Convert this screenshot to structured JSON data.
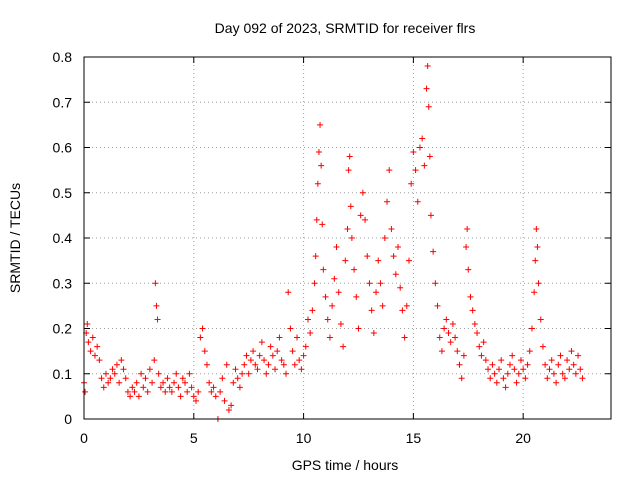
{
  "chart_data": {
    "type": "scatter",
    "title": "Day 092 of 2023, SRMTID for receiver flrs",
    "xlabel": "GPS time / hours",
    "ylabel": "SRMTID / TECUs",
    "xlim": [
      0,
      24
    ],
    "ylim": [
      0,
      0.8
    ],
    "xticks": [
      0,
      5,
      10,
      15,
      20
    ],
    "yticks": [
      0,
      0.1,
      0.2,
      0.3,
      0.4,
      0.5,
      0.6,
      0.7,
      0.8
    ],
    "xtick_labels": [
      "0",
      "5",
      "10",
      "15",
      "20"
    ],
    "ytick_labels": [
      "0",
      "0.1",
      "0.2",
      "0.3",
      "0.4",
      "0.5",
      "0.6",
      "0.7",
      "0.8"
    ],
    "grid": true,
    "marker": "+",
    "color": "#ff0000",
    "series": [
      {
        "name": "flrs",
        "points": [
          [
            0.0,
            0.08
          ],
          [
            0.05,
            0.06
          ],
          [
            0.1,
            0.19
          ],
          [
            0.15,
            0.21
          ],
          [
            0.2,
            0.17
          ],
          [
            0.3,
            0.15
          ],
          [
            0.4,
            0.18
          ],
          [
            0.5,
            0.14
          ],
          [
            0.6,
            0.16
          ],
          [
            0.7,
            0.13
          ],
          [
            0.8,
            0.09
          ],
          [
            0.9,
            0.07
          ],
          [
            1.0,
            0.1
          ],
          [
            1.1,
            0.08
          ],
          [
            1.2,
            0.09
          ],
          [
            1.3,
            0.11
          ],
          [
            1.4,
            0.1
          ],
          [
            1.5,
            0.12
          ],
          [
            1.6,
            0.08
          ],
          [
            1.7,
            0.13
          ],
          [
            1.8,
            0.11
          ],
          [
            1.9,
            0.09
          ],
          [
            2.0,
            0.06
          ],
          [
            2.1,
            0.05
          ],
          [
            2.2,
            0.07
          ],
          [
            2.3,
            0.06
          ],
          [
            2.4,
            0.08
          ],
          [
            2.5,
            0.05
          ],
          [
            2.6,
            0.1
          ],
          [
            2.7,
            0.07
          ],
          [
            2.8,
            0.09
          ],
          [
            2.9,
            0.06
          ],
          [
            3.0,
            0.11
          ],
          [
            3.1,
            0.08
          ],
          [
            3.2,
            0.13
          ],
          [
            3.25,
            0.3
          ],
          [
            3.3,
            0.25
          ],
          [
            3.35,
            0.22
          ],
          [
            3.4,
            0.1
          ],
          [
            3.5,
            0.07
          ],
          [
            3.6,
            0.08
          ],
          [
            3.7,
            0.06
          ],
          [
            3.8,
            0.09
          ],
          [
            3.9,
            0.07
          ],
          [
            4.0,
            0.06
          ],
          [
            4.1,
            0.08
          ],
          [
            4.2,
            0.1
          ],
          [
            4.3,
            0.07
          ],
          [
            4.4,
            0.05
          ],
          [
            4.5,
            0.09
          ],
          [
            4.6,
            0.08
          ],
          [
            4.7,
            0.06
          ],
          [
            4.8,
            0.1
          ],
          [
            4.9,
            0.07
          ],
          [
            5.0,
            0.05
          ],
          [
            5.1,
            0.04
          ],
          [
            5.2,
            0.06
          ],
          [
            5.3,
            0.18
          ],
          [
            5.4,
            0.2
          ],
          [
            5.5,
            0.15
          ],
          [
            5.6,
            0.12
          ],
          [
            5.7,
            0.08
          ],
          [
            5.8,
            0.06
          ],
          [
            5.9,
            0.07
          ],
          [
            6.0,
            0.05
          ],
          [
            6.1,
            0.0
          ],
          [
            6.2,
            0.06
          ],
          [
            6.3,
            0.09
          ],
          [
            6.4,
            0.04
          ],
          [
            6.5,
            0.12
          ],
          [
            6.6,
            0.02
          ],
          [
            6.7,
            0.03
          ],
          [
            6.8,
            0.08
          ],
          [
            6.9,
            0.11
          ],
          [
            7.0,
            0.09
          ],
          [
            7.1,
            0.07
          ],
          [
            7.2,
            0.1
          ],
          [
            7.3,
            0.12
          ],
          [
            7.4,
            0.14
          ],
          [
            7.5,
            0.1
          ],
          [
            7.6,
            0.13
          ],
          [
            7.7,
            0.15
          ],
          [
            7.8,
            0.12
          ],
          [
            7.9,
            0.11
          ],
          [
            8.0,
            0.14
          ],
          [
            8.1,
            0.17
          ],
          [
            8.2,
            0.13
          ],
          [
            8.3,
            0.1
          ],
          [
            8.4,
            0.12
          ],
          [
            8.5,
            0.16
          ],
          [
            8.6,
            0.14
          ],
          [
            8.7,
            0.11
          ],
          [
            8.8,
            0.15
          ],
          [
            8.9,
            0.18
          ],
          [
            9.0,
            0.13
          ],
          [
            9.1,
            0.12
          ],
          [
            9.2,
            0.1
          ],
          [
            9.3,
            0.28
          ],
          [
            9.4,
            0.2
          ],
          [
            9.5,
            0.15
          ],
          [
            9.6,
            0.12
          ],
          [
            9.7,
            0.18
          ],
          [
            9.8,
            0.13
          ],
          [
            9.9,
            0.11
          ],
          [
            10.0,
            0.14
          ],
          [
            10.1,
            0.16
          ],
          [
            10.2,
            0.22
          ],
          [
            10.3,
            0.19
          ],
          [
            10.4,
            0.24
          ],
          [
            10.5,
            0.3
          ],
          [
            10.55,
            0.36
          ],
          [
            10.6,
            0.44
          ],
          [
            10.65,
            0.52
          ],
          [
            10.7,
            0.59
          ],
          [
            10.75,
            0.65
          ],
          [
            10.8,
            0.56
          ],
          [
            10.85,
            0.43
          ],
          [
            10.9,
            0.33
          ],
          [
            11.0,
            0.27
          ],
          [
            11.1,
            0.22
          ],
          [
            11.2,
            0.18
          ],
          [
            11.3,
            0.25
          ],
          [
            11.4,
            0.31
          ],
          [
            11.5,
            0.38
          ],
          [
            11.6,
            0.28
          ],
          [
            11.7,
            0.21
          ],
          [
            11.8,
            0.16
          ],
          [
            11.9,
            0.35
          ],
          [
            12.0,
            0.42
          ],
          [
            12.05,
            0.55
          ],
          [
            12.1,
            0.58
          ],
          [
            12.15,
            0.47
          ],
          [
            12.2,
            0.4
          ],
          [
            12.3,
            0.33
          ],
          [
            12.4,
            0.27
          ],
          [
            12.5,
            0.2
          ],
          [
            12.6,
            0.45
          ],
          [
            12.7,
            0.5
          ],
          [
            12.8,
            0.44
          ],
          [
            12.9,
            0.36
          ],
          [
            13.0,
            0.3
          ],
          [
            13.1,
            0.24
          ],
          [
            13.2,
            0.19
          ],
          [
            13.3,
            0.28
          ],
          [
            13.4,
            0.35
          ],
          [
            13.5,
            0.3
          ],
          [
            13.6,
            0.25
          ],
          [
            13.7,
            0.4
          ],
          [
            13.8,
            0.48
          ],
          [
            13.9,
            0.55
          ],
          [
            14.0,
            0.42
          ],
          [
            14.1,
            0.36
          ],
          [
            14.2,
            0.32
          ],
          [
            14.3,
            0.38
          ],
          [
            14.4,
            0.29
          ],
          [
            14.5,
            0.24
          ],
          [
            14.6,
            0.18
          ],
          [
            14.7,
            0.25
          ],
          [
            14.8,
            0.35
          ],
          [
            14.9,
            0.52
          ],
          [
            15.0,
            0.59
          ],
          [
            15.1,
            0.55
          ],
          [
            15.2,
            0.48
          ],
          [
            15.3,
            0.6
          ],
          [
            15.4,
            0.62
          ],
          [
            15.5,
            0.56
          ],
          [
            15.6,
            0.73
          ],
          [
            15.65,
            0.78
          ],
          [
            15.7,
            0.69
          ],
          [
            15.75,
            0.58
          ],
          [
            15.8,
            0.45
          ],
          [
            15.9,
            0.37
          ],
          [
            16.0,
            0.3
          ],
          [
            16.1,
            0.25
          ],
          [
            16.2,
            0.18
          ],
          [
            16.3,
            0.15
          ],
          [
            16.4,
            0.2
          ],
          [
            16.5,
            0.22
          ],
          [
            16.6,
            0.19
          ],
          [
            16.7,
            0.17
          ],
          [
            16.8,
            0.21
          ],
          [
            16.9,
            0.18
          ],
          [
            17.0,
            0.15
          ],
          [
            17.1,
            0.12
          ],
          [
            17.2,
            0.09
          ],
          [
            17.3,
            0.14
          ],
          [
            17.4,
            0.38
          ],
          [
            17.45,
            0.42
          ],
          [
            17.5,
            0.33
          ],
          [
            17.6,
            0.27
          ],
          [
            17.7,
            0.24
          ],
          [
            17.8,
            0.21
          ],
          [
            17.9,
            0.19
          ],
          [
            18.0,
            0.16
          ],
          [
            18.1,
            0.14
          ],
          [
            18.2,
            0.17
          ],
          [
            18.3,
            0.13
          ],
          [
            18.4,
            0.11
          ],
          [
            18.5,
            0.09
          ],
          [
            18.6,
            0.12
          ],
          [
            18.7,
            0.1
          ],
          [
            18.8,
            0.08
          ],
          [
            18.9,
            0.11
          ],
          [
            19.0,
            0.13
          ],
          [
            19.1,
            0.09
          ],
          [
            19.2,
            0.07
          ],
          [
            19.3,
            0.1
          ],
          [
            19.4,
            0.12
          ],
          [
            19.5,
            0.14
          ],
          [
            19.6,
            0.11
          ],
          [
            19.7,
            0.08
          ],
          [
            19.8,
            0.1
          ],
          [
            19.9,
            0.13
          ],
          [
            20.0,
            0.11
          ],
          [
            20.1,
            0.09
          ],
          [
            20.2,
            0.12
          ],
          [
            20.3,
            0.15
          ],
          [
            20.4,
            0.2
          ],
          [
            20.5,
            0.28
          ],
          [
            20.55,
            0.35
          ],
          [
            20.6,
            0.42
          ],
          [
            20.65,
            0.38
          ],
          [
            20.7,
            0.3
          ],
          [
            20.8,
            0.22
          ],
          [
            20.9,
            0.16
          ],
          [
            21.0,
            0.12
          ],
          [
            21.1,
            0.09
          ],
          [
            21.2,
            0.11
          ],
          [
            21.3,
            0.13
          ],
          [
            21.4,
            0.1
          ],
          [
            21.5,
            0.08
          ],
          [
            21.6,
            0.12
          ],
          [
            21.7,
            0.14
          ],
          [
            21.8,
            0.1
          ],
          [
            21.9,
            0.09
          ],
          [
            22.0,
            0.13
          ],
          [
            22.1,
            0.11
          ],
          [
            22.2,
            0.15
          ],
          [
            22.3,
            0.12
          ],
          [
            22.4,
            0.1
          ],
          [
            22.5,
            0.14
          ],
          [
            22.6,
            0.11
          ],
          [
            22.7,
            0.09
          ]
        ]
      }
    ]
  }
}
